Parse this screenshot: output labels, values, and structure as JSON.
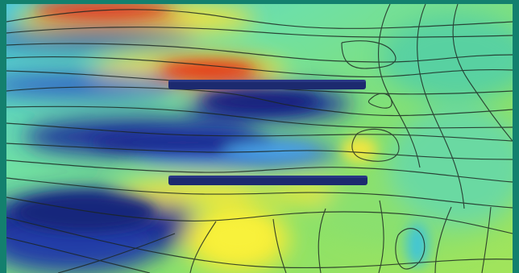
{
  "colors": {
    "frame": "#13806e",
    "field_low": "#1c2f97",
    "field_mid_low": "#2ea7e6",
    "field_mid": "#28d5c6",
    "field_neutral": "#8ee070",
    "field_high": "#f2e63a",
    "field_peak": "#dd2e1f",
    "plate": "#1c2a6f",
    "contour": "#1b2520"
  },
  "scene": {
    "plate_count": 2,
    "description_visible": false
  }
}
